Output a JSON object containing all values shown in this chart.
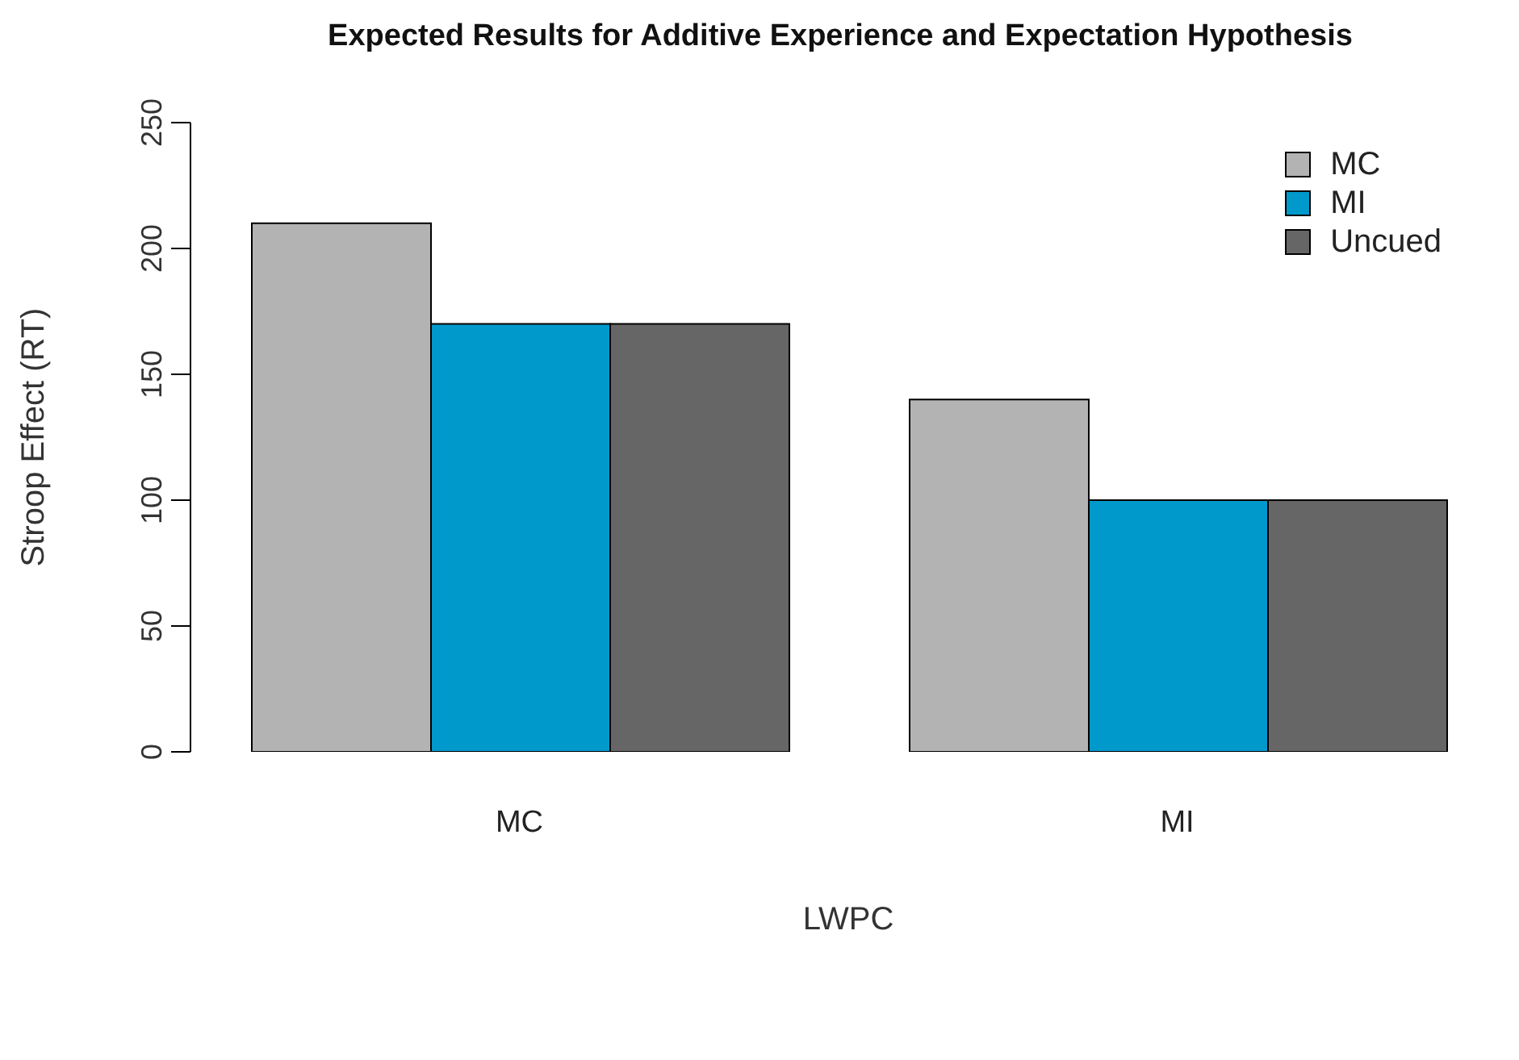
{
  "chart_data": {
    "type": "bar",
    "title": "Expected Results for Additive Experience and Expectation Hypothesis",
    "xlabel": "LWPC",
    "ylabel": "Stroop Effect (RT)",
    "categories": [
      "MC",
      "MI"
    ],
    "series": [
      {
        "name": "MC",
        "color": "#b3b3b3",
        "values": [
          210,
          140
        ]
      },
      {
        "name": "MI",
        "color": "#0099cc",
        "values": [
          170,
          100
        ]
      },
      {
        "name": "Uncued",
        "color": "#666666",
        "values": [
          170,
          100
        ]
      }
    ],
    "ylim": [
      0,
      250
    ],
    "yticks": [
      0,
      50,
      100,
      150,
      200,
      250
    ],
    "legend": "top right"
  }
}
